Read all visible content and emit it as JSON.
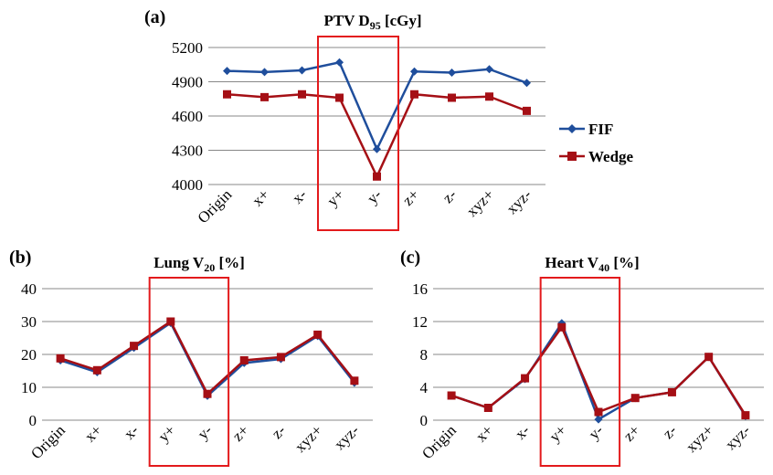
{
  "chart_data": [
    {
      "type": "line",
      "panel": "(a)",
      "title": "PTV D",
      "title_sub": "95",
      "title_unit": " [cGy]",
      "categories": [
        "Origin",
        "x+",
        "x-",
        "y+",
        "y-",
        "z+",
        "z-",
        "xyz+",
        "xyz-"
      ],
      "ylim": [
        4000,
        5200
      ],
      "yticks": [
        4000,
        4300,
        4600,
        4900,
        5200
      ],
      "grid": true,
      "legend": "right",
      "highlight": [
        "y+",
        "y-"
      ],
      "series": [
        {
          "name": "FIF",
          "color": "#1f4e9c",
          "marker": "diamond",
          "values": [
            4995,
            4985,
            5000,
            5070,
            4310,
            4990,
            4980,
            5010,
            4890
          ]
        },
        {
          "name": "Wedge",
          "color": "#a50f15",
          "marker": "square",
          "values": [
            4790,
            4765,
            4790,
            4760,
            4070,
            4790,
            4760,
            4770,
            4645
          ]
        }
      ]
    },
    {
      "type": "line",
      "panel": "(b)",
      "title": "Lung V",
      "title_sub": "20",
      "title_unit": " [%]",
      "categories": [
        "Origin",
        "x+",
        "x-",
        "y+",
        "y-",
        "z+",
        "z-",
        "xyz+",
        "xyz-"
      ],
      "ylim": [
        0,
        40
      ],
      "yticks": [
        0,
        10,
        20,
        30,
        40
      ],
      "grid": true,
      "highlight": [
        "y+",
        "y-"
      ],
      "series": [
        {
          "name": "FIF",
          "color": "#1f4e9c",
          "marker": "diamond",
          "values": [
            18.2,
            14.6,
            22.0,
            29.6,
            7.4,
            17.4,
            18.6,
            25.6,
            11.4
          ]
        },
        {
          "name": "Wedge",
          "color": "#a50f15",
          "marker": "square",
          "values": [
            18.8,
            15.2,
            22.6,
            30.0,
            8.0,
            18.2,
            19.2,
            26.0,
            12.0
          ]
        }
      ]
    },
    {
      "type": "line",
      "panel": "(c)",
      "title": "Heart V",
      "title_sub": "40",
      "title_unit": " [%]",
      "categories": [
        "Origin",
        "x+",
        "x-",
        "y+",
        "y-",
        "z+",
        "z-",
        "xyz+",
        "xyz-"
      ],
      "ylim": [
        0,
        16
      ],
      "yticks": [
        0,
        4,
        8,
        12,
        16
      ],
      "grid": true,
      "highlight": [
        "y+",
        "y-"
      ],
      "series": [
        {
          "name": "FIF",
          "color": "#1f4e9c",
          "marker": "diamond",
          "values": [
            3.0,
            1.5,
            5.0,
            11.8,
            0.1,
            2.7,
            3.4,
            7.7,
            0.5
          ]
        },
        {
          "name": "Wedge",
          "color": "#a50f15",
          "marker": "square",
          "values": [
            3.0,
            1.5,
            5.1,
            11.3,
            1.0,
            2.7,
            3.4,
            7.7,
            0.6
          ]
        }
      ]
    }
  ],
  "colors": {
    "fif": "#1f4e9c",
    "wedge": "#a50f15",
    "highlight": "#e31a1c",
    "grid": "#888888"
  }
}
